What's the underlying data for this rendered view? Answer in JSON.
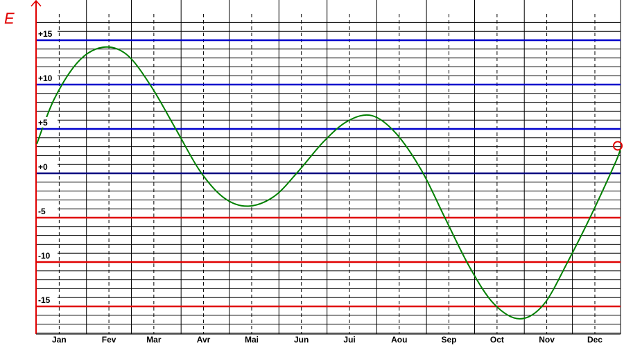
{
  "chart_data": {
    "type": "line",
    "ylabel": "E",
    "ylim": [
      -18,
      18
    ],
    "grid": true,
    "y_ticks": [
      {
        "value": 15,
        "label": "+15",
        "color": "#0000cc"
      },
      {
        "value": 10,
        "label": "+10",
        "color": "#0000cc"
      },
      {
        "value": 5,
        "label": "+5",
        "color": "#0000cc"
      },
      {
        "value": 0,
        "label": "+0",
        "color": "#000080"
      },
      {
        "value": -5,
        "label": "-5",
        "color": "#e00000"
      },
      {
        "value": -10,
        "label": "-10",
        "color": "#e00000"
      },
      {
        "value": -15,
        "label": "-15",
        "color": "#e00000"
      }
    ],
    "months": [
      "Jan",
      "Fev",
      "Mar",
      "Avr",
      "Mai",
      "Jun",
      "Jui",
      "Aou",
      "Sep",
      "Oct",
      "Nov",
      "Dec"
    ],
    "x_unit": "day of year",
    "xlim": [
      1,
      365
    ],
    "series": [
      {
        "color": "#008000",
        "x": [
          1,
          12,
          27,
          42,
          57,
          72,
          88,
          103,
          118,
          133,
          149,
          164,
          180,
          195,
          210,
          225,
          241,
          256,
          271,
          286,
          302,
          317,
          332,
          347,
          362,
          365
        ],
        "y": [
          3.3,
          8.4,
          12.6,
          14.2,
          13.4,
          9.9,
          4.9,
          0.2,
          -2.8,
          -3.7,
          -2.6,
          0.2,
          3.6,
          5.9,
          6.5,
          4.5,
          0.3,
          -5.2,
          -10.6,
          -14.7,
          -16.4,
          -14.8,
          -10.0,
          -4.6,
          1.3,
          2.8
        ]
      }
    ],
    "marker": {
      "x": 365,
      "y": 3.1,
      "color": "#e00000"
    },
    "minor_grid_step": 1,
    "axis_color": "#e00000"
  }
}
